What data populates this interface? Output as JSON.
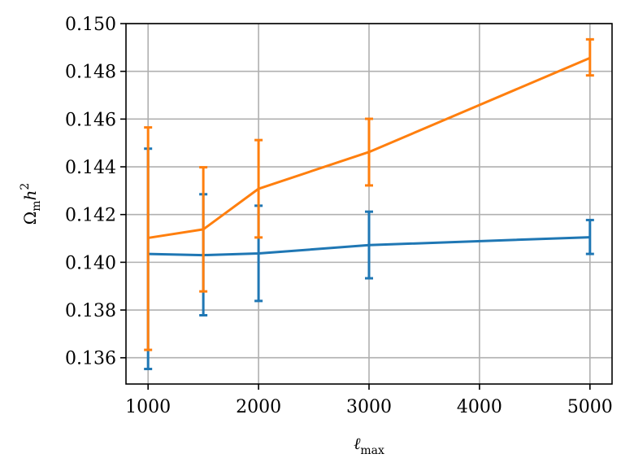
{
  "chart_data": {
    "type": "line",
    "title": "",
    "xlabel": {
      "main": "ℓ",
      "sub": "max"
    },
    "ylabel": {
      "main": "Ω",
      "sub": "m",
      "tail": "h",
      "sup": "2"
    },
    "xlim": [
      800,
      5200
    ],
    "ylim": [
      0.1349,
      0.15
    ],
    "xticks": [
      1000,
      2000,
      3000,
      4000,
      5000
    ],
    "xtick_labels": [
      "1000",
      "2000",
      "3000",
      "4000",
      "5000"
    ],
    "yticks": [
      0.136,
      0.138,
      0.14,
      0.142,
      0.144,
      0.146,
      0.148,
      0.15
    ],
    "ytick_labels": [
      "0.136",
      "0.138",
      "0.140",
      "0.142",
      "0.144",
      "0.146",
      "0.148",
      "0.150"
    ],
    "grid": true,
    "series": [
      {
        "color": "#1f77b4",
        "x": [
          1000,
          1500,
          2000,
          3000,
          5000
        ],
        "y": [
          0.14035,
          0.1403,
          0.14037,
          0.14072,
          0.14105
        ],
        "yerr_low": [
          0.13553,
          0.13778,
          0.13838,
          0.13933,
          0.14035
        ],
        "yerr_high": [
          0.14476,
          0.14285,
          0.14237,
          0.14212,
          0.14177
        ]
      },
      {
        "color": "#ff7f0e",
        "x": [
          1000,
          1500,
          2000,
          3000,
          5000
        ],
        "y": [
          0.14102,
          0.14138,
          0.14308,
          0.14462,
          0.14856
        ],
        "yerr_low": [
          0.13633,
          0.13878,
          0.14104,
          0.14322,
          0.14783
        ],
        "yerr_high": [
          0.14565,
          0.14398,
          0.14512,
          0.14601,
          0.14934
        ]
      }
    ]
  }
}
